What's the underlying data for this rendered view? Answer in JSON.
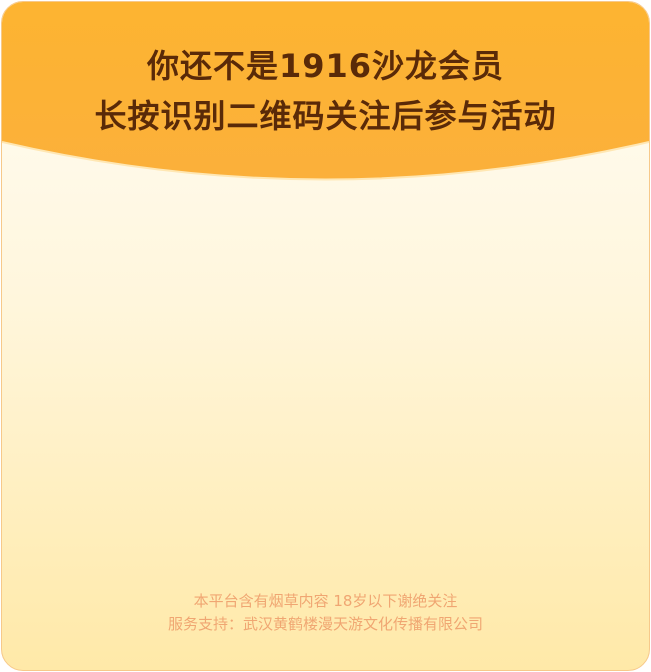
{
  "header": {
    "line1": "你还不是1916沙龙会员",
    "line2": "长按识别二维码关注后参与活动"
  },
  "footer": {
    "notice": "本平台含有烟草内容 18岁以下谢绝关注",
    "service": "服务支持：武汉黄鹤楼漫天游文化传播有限公司"
  },
  "colors": {
    "header_bg": "#fdb431",
    "title_text": "#5a2a08",
    "footer_text": "#f0a672",
    "border": "#f7c98a"
  }
}
